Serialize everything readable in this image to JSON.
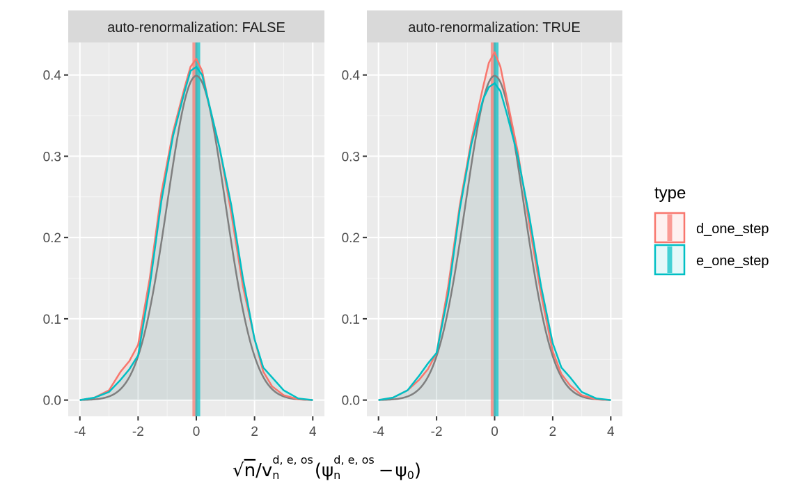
{
  "chart_data": {
    "type": "area",
    "facets": [
      {
        "strip": "auto-renormalization: FALSE",
        "series": [
          {
            "name": "d_one_step",
            "color": "#F8766D",
            "x": [
              -4.0,
              -3.5,
              -3.0,
              -2.6,
              -2.3,
              -2.0,
              -1.6,
              -1.2,
              -0.8,
              -0.4,
              -0.2,
              0.0,
              0.2,
              0.4,
              0.8,
              1.2,
              1.6,
              2.0,
              2.3,
              2.6,
              3.0,
              3.5,
              4.0
            ],
            "y": [
              0.0,
              0.003,
              0.012,
              0.035,
              0.048,
              0.068,
              0.15,
              0.255,
              0.33,
              0.385,
              0.41,
              0.42,
              0.405,
              0.37,
              0.31,
              0.23,
              0.14,
              0.075,
              0.035,
              0.017,
              0.006,
              0.001,
              0.0
            ],
            "vline": -0.05
          },
          {
            "name": "e_one_step",
            "color": "#00BFC4",
            "x": [
              -4.0,
              -3.5,
              -3.0,
              -2.6,
              -2.3,
              -2.0,
              -1.6,
              -1.2,
              -0.8,
              -0.4,
              -0.2,
              0.0,
              0.2,
              0.4,
              0.8,
              1.2,
              1.6,
              2.0,
              2.3,
              2.6,
              3.0,
              3.5,
              4.0
            ],
            "y": [
              0.0,
              0.003,
              0.01,
              0.025,
              0.038,
              0.055,
              0.14,
              0.245,
              0.325,
              0.38,
              0.405,
              0.41,
              0.4,
              0.37,
              0.31,
              0.24,
              0.15,
              0.075,
              0.04,
              0.028,
              0.012,
              0.002,
              0.0
            ],
            "vline": 0.05
          }
        ]
      },
      {
        "strip": "auto-renormalization: TRUE",
        "series": [
          {
            "name": "d_one_step",
            "color": "#F8766D",
            "x": [
              -4.0,
              -3.5,
              -3.0,
              -2.6,
              -2.3,
              -2.0,
              -1.6,
              -1.2,
              -0.8,
              -0.4,
              -0.2,
              0.0,
              0.2,
              0.4,
              0.8,
              1.2,
              1.6,
              2.0,
              2.3,
              2.6,
              3.0,
              3.5,
              4.0
            ],
            "y": [
              0.0,
              0.003,
              0.012,
              0.025,
              0.038,
              0.058,
              0.14,
              0.24,
              0.32,
              0.385,
              0.415,
              0.428,
              0.41,
              0.375,
              0.305,
              0.215,
              0.13,
              0.06,
              0.032,
              0.018,
              0.006,
              0.001,
              0.0
            ],
            "vline": -0.05
          },
          {
            "name": "e_one_step",
            "color": "#00BFC4",
            "x": [
              -4.0,
              -3.5,
              -3.0,
              -2.6,
              -2.3,
              -2.0,
              -1.6,
              -1.2,
              -0.8,
              -0.4,
              -0.2,
              0.0,
              0.2,
              0.4,
              0.8,
              1.2,
              1.6,
              2.0,
              2.3,
              2.6,
              3.0,
              3.5,
              4.0
            ],
            "y": [
              0.0,
              0.003,
              0.012,
              0.03,
              0.045,
              0.058,
              0.13,
              0.235,
              0.315,
              0.37,
              0.385,
              0.39,
              0.38,
              0.355,
              0.3,
              0.225,
              0.14,
              0.07,
              0.04,
              0.028,
              0.01,
              0.002,
              0.0
            ],
            "vline": 0.05
          }
        ]
      }
    ],
    "reference_curve": {
      "description": "standard normal density",
      "color": "#7F7F7F"
    },
    "xlim": [
      -4.4,
      4.4
    ],
    "ylim": [
      -0.02,
      0.44
    ],
    "x_ticks": [
      -4,
      -2,
      0,
      2,
      4
    ],
    "x_tick_labels": [
      "-4",
      "-2",
      "0",
      "2",
      "4"
    ],
    "y_ticks": [
      0.0,
      0.1,
      0.2,
      0.3,
      0.4
    ],
    "y_tick_labels": [
      "0.0",
      "0.1",
      "0.2",
      "0.3",
      "0.4"
    ],
    "xlabel": {
      "prefix": "√",
      "n": "n",
      "slash": "/",
      "v": "v",
      "sub": "n",
      "sup": "d, e, os",
      "psi": "ψ",
      "minus": "−",
      "psi0": "ψ",
      "psi0_sub": "0",
      "open": "(",
      "close": ")"
    },
    "ylabel": "",
    "grid": true,
    "legend": {
      "title": "type",
      "placement": "right",
      "entries": [
        {
          "label": "d_one_step",
          "color": "#F8766D"
        },
        {
          "label": "e_one_step",
          "color": "#00BFC4"
        }
      ]
    }
  }
}
